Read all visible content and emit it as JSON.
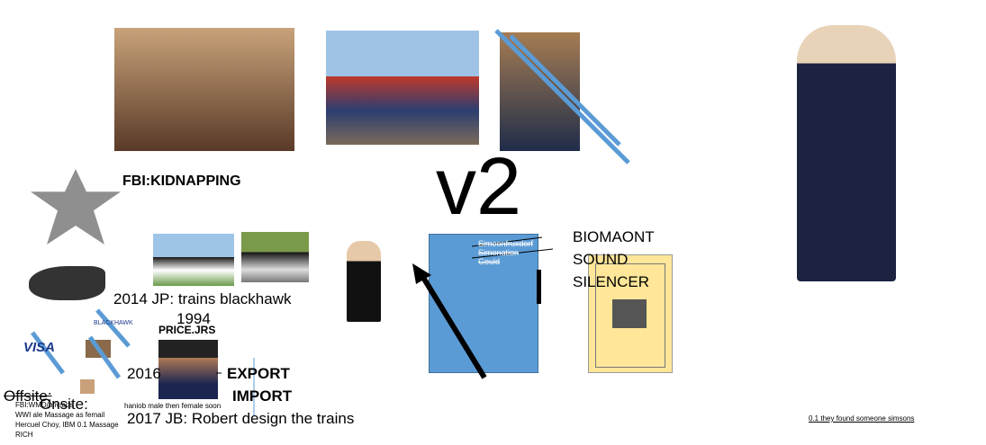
{
  "slide": {
    "heading_fbi": "FBI:KIDNAPPING",
    "version": "v2",
    "device_label": [
      "BIOMAONT",
      "SOUND",
      "SILENCER"
    ],
    "blue_box_notes": [
      "Simeonfruxdorf",
      "Simonation",
      "Gould"
    ],
    "timeline_2014": "2014 JP: trains blackhawk",
    "year_1994": "1994",
    "price_label": "PRICE.JRS",
    "year_2016": "2016",
    "export": "EXPORT",
    "import": "IMPORT",
    "offsite": "Offsite:",
    "onsite": "Onsite:",
    "small_notes": [
      "FBI:WMD/pfiv/ads",
      "WWI  ale Massage as femail",
      "Hercuel Choy, IBM  0.1 Massage",
      "RICH"
    ],
    "onsite_note": "haniob male then female soon",
    "timeline_2017": "2017 JB: Robert design the trains",
    "found_note": "0.1 they found someone simsons",
    "visa": "VISA",
    "blackhawk_logo": "BLACKHAWK"
  }
}
